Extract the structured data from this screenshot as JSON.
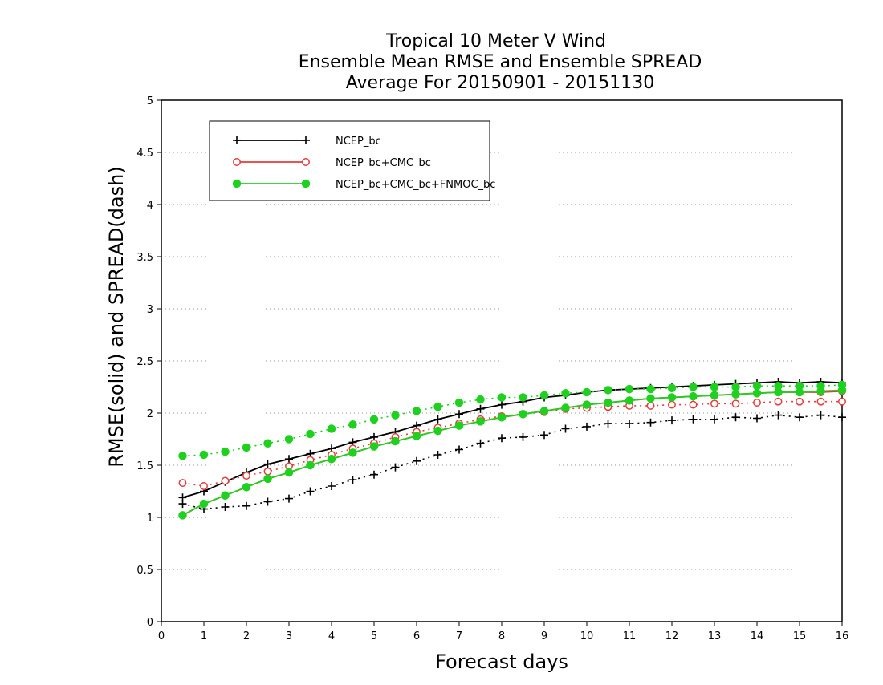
{
  "chart_data": {
    "type": "line",
    "title": [
      "Tropical 10 Meter V Wind",
      "Ensemble Mean RMSE and Ensemble SPREAD",
      "Average For 20150901 - 20151130"
    ],
    "xlabel": "Forecast days",
    "ylabel": "RMSE(solid) and SPREAD(dash)",
    "xlim": [
      0,
      16
    ],
    "ylim": [
      0,
      5
    ],
    "xticks": [
      0,
      1,
      2,
      3,
      4,
      5,
      6,
      7,
      8,
      9,
      10,
      11,
      12,
      13,
      14,
      15,
      16
    ],
    "xtick_labels": [
      "0",
      "1",
      "2",
      "3",
      "4",
      "5",
      "6",
      "7",
      "8",
      "9",
      "10",
      "11",
      "12",
      "13",
      "14",
      "15",
      "16"
    ],
    "yticks": [
      0,
      0.5,
      1,
      1.5,
      2,
      2.5,
      3,
      3.5,
      4,
      4.5,
      5
    ],
    "ytick_labels": [
      "0",
      "0.5",
      "1",
      "1.5",
      "2",
      "2.5",
      "3",
      "3.5",
      "4",
      "4.5",
      "5"
    ],
    "grid": true,
    "legend_position": "top-left",
    "x": [
      0.5,
      1,
      1.5,
      2,
      2.5,
      3,
      3.5,
      4,
      4.5,
      5,
      5.5,
      6,
      6.5,
      7,
      7.5,
      8,
      8.5,
      9,
      9.5,
      10,
      10.5,
      11,
      11.5,
      12,
      12.5,
      13,
      13.5,
      14,
      14.5,
      15,
      15.5,
      16
    ],
    "series": [
      {
        "name": "NCEP_bc",
        "color": "#000000",
        "marker": "plus",
        "rmse": [
          1.19,
          1.25,
          1.34,
          1.43,
          1.51,
          1.56,
          1.61,
          1.66,
          1.72,
          1.77,
          1.82,
          1.88,
          1.94,
          1.99,
          2.04,
          2.08,
          2.11,
          2.15,
          2.17,
          2.2,
          2.22,
          2.23,
          2.24,
          2.25,
          2.26,
          2.27,
          2.28,
          2.29,
          2.3,
          2.29,
          2.3,
          2.29
        ],
        "spread": [
          1.13,
          1.08,
          1.1,
          1.11,
          1.15,
          1.18,
          1.25,
          1.3,
          1.36,
          1.41,
          1.48,
          1.54,
          1.6,
          1.65,
          1.71,
          1.76,
          1.77,
          1.79,
          1.85,
          1.87,
          1.9,
          1.9,
          1.91,
          1.93,
          1.94,
          1.94,
          1.96,
          1.95,
          1.98,
          1.96,
          1.98,
          1.96
        ]
      },
      {
        "name": "NCEP_bc+CMC_bc",
        "color": "#e83a3a",
        "marker": "open-circle",
        "rmse": [
          1.02,
          1.13,
          1.21,
          1.29,
          1.37,
          1.43,
          1.5,
          1.56,
          1.62,
          1.68,
          1.73,
          1.78,
          1.83,
          1.88,
          1.92,
          1.96,
          1.99,
          2.02,
          2.05,
          2.08,
          2.1,
          2.12,
          2.14,
          2.15,
          2.16,
          2.17,
          2.18,
          2.19,
          2.2,
          2.2,
          2.2,
          2.21
        ],
        "spread": [
          1.33,
          1.3,
          1.35,
          1.4,
          1.44,
          1.49,
          1.55,
          1.6,
          1.66,
          1.71,
          1.77,
          1.82,
          1.86,
          1.9,
          1.94,
          1.97,
          1.99,
          2.01,
          2.04,
          2.05,
          2.06,
          2.07,
          2.07,
          2.08,
          2.08,
          2.09,
          2.09,
          2.1,
          2.11,
          2.11,
          2.11,
          2.11
        ]
      },
      {
        "name": "NCEP_bc+CMC_bc+FNMOC_bc",
        "color": "#1ed11e",
        "marker": "filled-circle",
        "rmse": [
          1.02,
          1.13,
          1.21,
          1.29,
          1.37,
          1.43,
          1.5,
          1.56,
          1.62,
          1.68,
          1.73,
          1.78,
          1.83,
          1.88,
          1.92,
          1.96,
          1.99,
          2.02,
          2.05,
          2.08,
          2.1,
          2.12,
          2.14,
          2.15,
          2.16,
          2.17,
          2.18,
          2.19,
          2.2,
          2.2,
          2.21,
          2.22
        ],
        "spread": [
          1.59,
          1.6,
          1.63,
          1.67,
          1.71,
          1.75,
          1.8,
          1.85,
          1.89,
          1.94,
          1.98,
          2.02,
          2.06,
          2.1,
          2.13,
          2.15,
          2.15,
          2.17,
          2.19,
          2.2,
          2.22,
          2.23,
          2.23,
          2.24,
          2.25,
          2.25,
          2.25,
          2.26,
          2.26,
          2.26,
          2.26,
          2.27
        ]
      }
    ]
  }
}
